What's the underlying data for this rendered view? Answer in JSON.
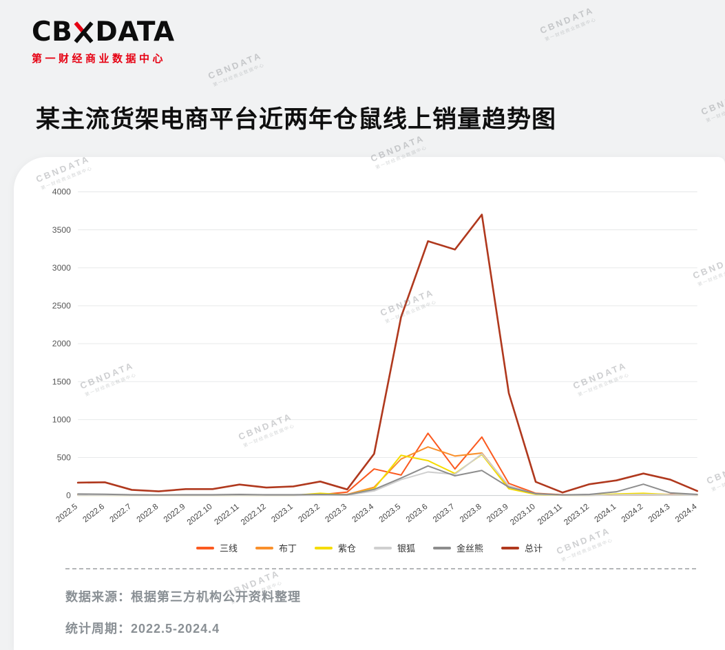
{
  "brand": {
    "logo_text_left": "CB",
    "logo_text_right": "DATA",
    "logo_glyph": "x-mark-icon",
    "subtitle": "第一财经商业数据中心",
    "accent_red": "#e60012"
  },
  "page_title": "某主流货架电商平台近两年仓鼠线上销量趋势图",
  "watermark": {
    "line1": "CBNDATA",
    "line2": "第一财经商业数据中心"
  },
  "footer": {
    "source_line": "数据来源：根据第三方机构公开资料整理",
    "period_line": "统计周期：2022.5-2024.4"
  },
  "chart_data": {
    "type": "line",
    "title": "某主流货架电商平台近两年仓鼠线上销量趋势图",
    "xlabel": "",
    "ylabel": "",
    "ylim": [
      0,
      4000
    ],
    "ytick_step": 500,
    "grid": true,
    "legend_position": "bottom",
    "categories": [
      "2022.5",
      "2022.6",
      "2022.7",
      "2022.8",
      "2022.9",
      "2022.10",
      "2022.11",
      "2022.12",
      "2023.1",
      "2023.2",
      "2023.3",
      "2023.4",
      "2023.5",
      "2023.6",
      "2023.7",
      "2023.8",
      "2023.9",
      "2023.10",
      "2023.11",
      "2023.12",
      "2024.1",
      "2024.2",
      "2024.3",
      "2024.4"
    ],
    "series": [
      {
        "name": "三线",
        "color": "#fb5a20",
        "values": [
          15,
          12,
          8,
          5,
          8,
          8,
          12,
          8,
          8,
          12,
          45,
          350,
          270,
          820,
          350,
          770,
          160,
          30,
          10,
          8,
          12,
          20,
          15,
          8
        ]
      },
      {
        "name": "布丁",
        "color": "#f9902c",
        "values": [
          8,
          8,
          5,
          4,
          5,
          5,
          8,
          5,
          5,
          8,
          15,
          110,
          480,
          640,
          520,
          560,
          120,
          25,
          8,
          5,
          8,
          12,
          10,
          5
        ]
      },
      {
        "name": "紫仓",
        "color": "#f5dc00",
        "values": [
          5,
          5,
          3,
          3,
          3,
          3,
          5,
          3,
          3,
          30,
          8,
          90,
          530,
          460,
          290,
          540,
          90,
          15,
          5,
          3,
          20,
          30,
          12,
          5
        ]
      },
      {
        "name": "银狐",
        "color": "#cfcfcf",
        "values": [
          5,
          5,
          3,
          3,
          3,
          3,
          5,
          3,
          3,
          5,
          5,
          60,
          210,
          310,
          280,
          550,
          130,
          20,
          5,
          3,
          10,
          15,
          10,
          5
        ]
      },
      {
        "name": "金丝熊",
        "color": "#8d8d8d",
        "values": [
          20,
          18,
          10,
          8,
          10,
          10,
          15,
          10,
          10,
          15,
          10,
          80,
          230,
          390,
          260,
          330,
          110,
          25,
          8,
          15,
          50,
          150,
          35,
          15
        ]
      },
      {
        "name": "总计",
        "color": "#b0391e",
        "values": [
          170,
          175,
          75,
          55,
          85,
          85,
          145,
          105,
          120,
          185,
          80,
          550,
          2350,
          3350,
          3240,
          3700,
          1350,
          180,
          40,
          150,
          200,
          290,
          210,
          60
        ]
      }
    ]
  }
}
